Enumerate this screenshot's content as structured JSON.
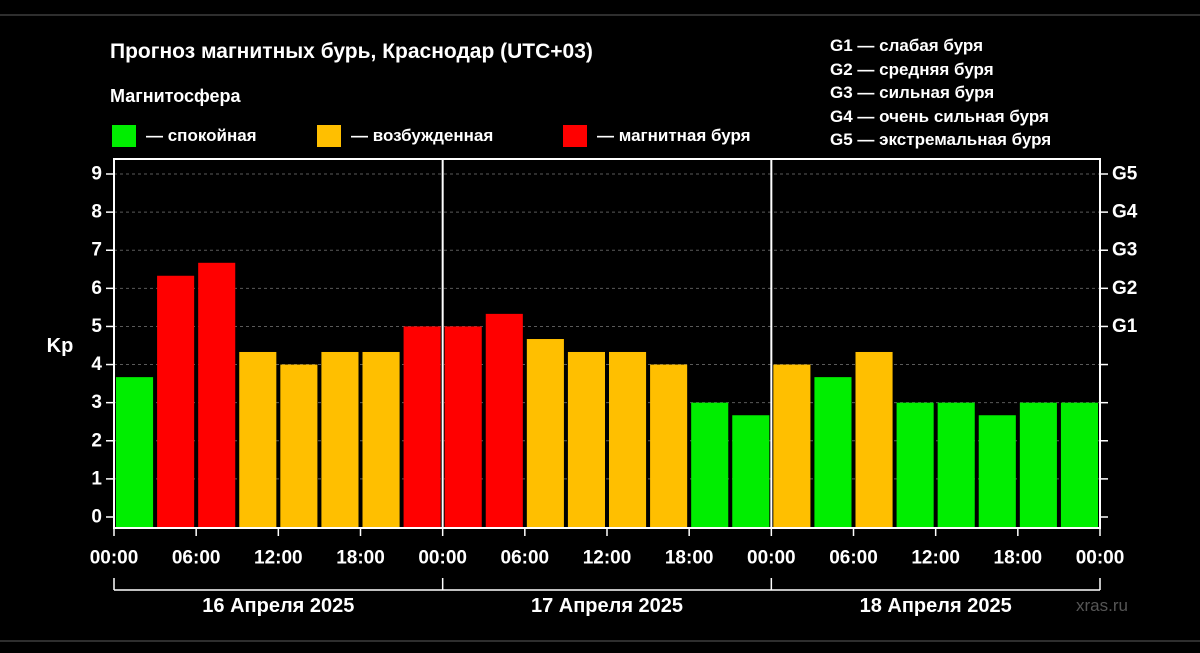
{
  "title": "Прогноз магнитных бурь, Краснодар (UTC+03)",
  "subtitle": "Магнитосфера",
  "legend": [
    {
      "label": "— спокойная",
      "color": "#00ee00"
    },
    {
      "label": "— возбужденная",
      "color": "#ffbf00"
    },
    {
      "label": "— магнитная буря",
      "color": "#ff0000"
    }
  ],
  "g_legend": [
    "G1 — слабая буря",
    "G2 — средняя буря",
    "G3 — сильная буря",
    "G4 — очень сильная буря",
    "G5 — экстремальная буря"
  ],
  "watermark": "xras.ru",
  "chart_data": {
    "type": "bar",
    "title": "Прогноз магнитных бурь, Краснодар (UTC+03)",
    "ylabel": "Kp",
    "ylim": [
      0,
      9
    ],
    "yticks": [
      "0",
      "1",
      "2",
      "3",
      "4",
      "5",
      "6",
      "7",
      "8",
      "9"
    ],
    "right_ticks": [
      {
        "value": 5,
        "label": "G1"
      },
      {
        "value": 6,
        "label": "G2"
      },
      {
        "value": 7,
        "label": "G3"
      },
      {
        "value": 8,
        "label": "G4"
      },
      {
        "value": 9,
        "label": "G5"
      }
    ],
    "xtick_labels": [
      "00:00",
      "06:00",
      "12:00",
      "18:00",
      "00:00",
      "06:00",
      "12:00",
      "18:00",
      "00:00",
      "06:00",
      "12:00",
      "18:00",
      "00:00"
    ],
    "days": [
      "16 Апреля 2025",
      "17 Апреля 2025",
      "18 Апреля 2025"
    ],
    "grid": true,
    "colors": {
      "quiet": "#00ee00",
      "unsettled": "#ffbf00",
      "storm": "#ff0000"
    },
    "values": [
      3.67,
      6.33,
      6.67,
      4.33,
      4.0,
      4.33,
      4.33,
      5.0,
      5.0,
      5.33,
      4.67,
      4.33,
      4.33,
      4.0,
      3.0,
      2.67,
      4.0,
      3.67,
      4.33,
      3.0,
      3.0,
      2.67,
      3.0,
      3.0
    ],
    "levels": [
      "quiet",
      "storm",
      "storm",
      "unsettled",
      "unsettled",
      "unsettled",
      "unsettled",
      "storm",
      "storm",
      "storm",
      "unsettled",
      "unsettled",
      "unsettled",
      "unsettled",
      "quiet",
      "quiet",
      "unsettled",
      "quiet",
      "unsettled",
      "quiet",
      "quiet",
      "quiet",
      "quiet",
      "quiet"
    ]
  }
}
